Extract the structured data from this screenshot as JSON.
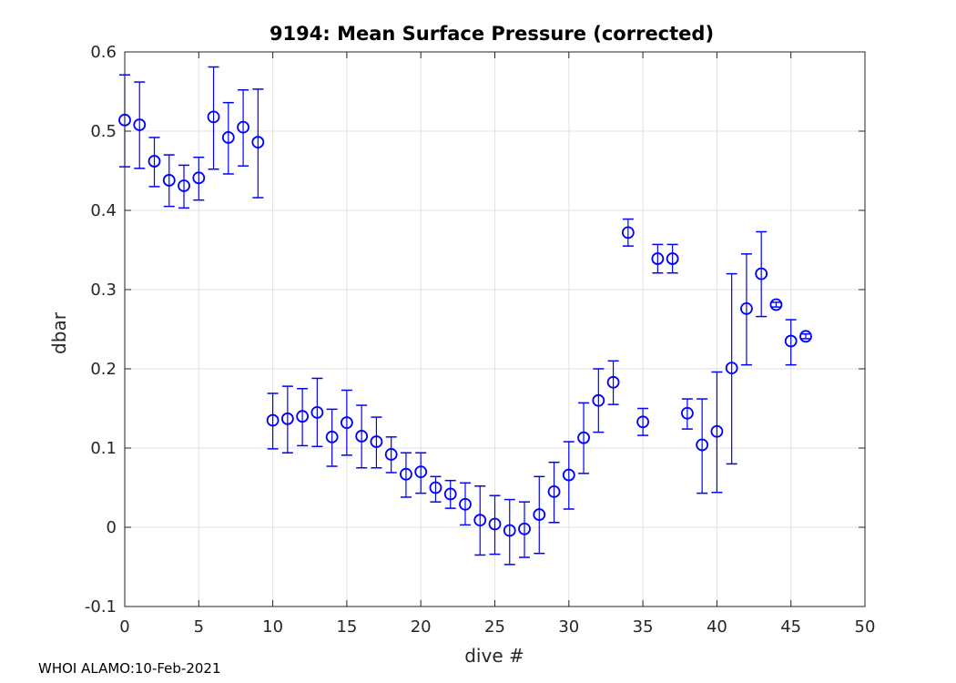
{
  "chart_data": {
    "type": "scatter",
    "title": "9194: Mean Surface Pressure (corrected)",
    "xlabel": "dive #",
    "ylabel": "dbar",
    "xlim": [
      0,
      50
    ],
    "ylim": [
      -0.1,
      0.6
    ],
    "xticks": [
      0,
      5,
      10,
      15,
      20,
      25,
      30,
      35,
      40,
      45,
      50
    ],
    "xtick_labels": [
      "0",
      "5",
      "10",
      "15",
      "20",
      "25",
      "30",
      "35",
      "40",
      "45",
      "50"
    ],
    "yticks": [
      -0.1,
      0,
      0.1,
      0.2,
      0.3,
      0.4,
      0.5,
      0.6
    ],
    "ytick_labels": [
      "-0.1",
      "0",
      "0.1",
      "0.2",
      "0.3",
      "0.4",
      "0.5",
      "0.6"
    ],
    "grid": true,
    "marker": "circle",
    "color": "#0000ff",
    "series": [
      {
        "name": "mean surface pressure",
        "points": [
          {
            "x": 0,
            "y": 0.514,
            "lo": 0.455,
            "hi": 0.571
          },
          {
            "x": 1,
            "y": 0.508,
            "lo": 0.453,
            "hi": 0.562
          },
          {
            "x": 2,
            "y": 0.462,
            "lo": 0.43,
            "hi": 0.492
          },
          {
            "x": 3,
            "y": 0.438,
            "lo": 0.405,
            "hi": 0.47
          },
          {
            "x": 4,
            "y": 0.431,
            "lo": 0.403,
            "hi": 0.457
          },
          {
            "x": 5,
            "y": 0.441,
            "lo": 0.413,
            "hi": 0.467
          },
          {
            "x": 6,
            "y": 0.518,
            "lo": 0.452,
            "hi": 0.581
          },
          {
            "x": 7,
            "y": 0.492,
            "lo": 0.446,
            "hi": 0.536
          },
          {
            "x": 8,
            "y": 0.505,
            "lo": 0.456,
            "hi": 0.552
          },
          {
            "x": 9,
            "y": 0.486,
            "lo": 0.416,
            "hi": 0.553
          },
          {
            "x": 10,
            "y": 0.135,
            "lo": 0.099,
            "hi": 0.169
          },
          {
            "x": 11,
            "y": 0.137,
            "lo": 0.094,
            "hi": 0.178
          },
          {
            "x": 12,
            "y": 0.14,
            "lo": 0.103,
            "hi": 0.175
          },
          {
            "x": 13,
            "y": 0.145,
            "lo": 0.102,
            "hi": 0.188
          },
          {
            "x": 14,
            "y": 0.114,
            "lo": 0.077,
            "hi": 0.149
          },
          {
            "x": 15,
            "y": 0.132,
            "lo": 0.091,
            "hi": 0.173
          },
          {
            "x": 16,
            "y": 0.115,
            "lo": 0.075,
            "hi": 0.154
          },
          {
            "x": 17,
            "y": 0.108,
            "lo": 0.075,
            "hi": 0.139
          },
          {
            "x": 18,
            "y": 0.092,
            "lo": 0.069,
            "hi": 0.114
          },
          {
            "x": 19,
            "y": 0.067,
            "lo": 0.038,
            "hi": 0.094
          },
          {
            "x": 20,
            "y": 0.07,
            "lo": 0.043,
            "hi": 0.094
          },
          {
            "x": 21,
            "y": 0.05,
            "lo": 0.032,
            "hi": 0.064
          },
          {
            "x": 22,
            "y": 0.042,
            "lo": 0.024,
            "hi": 0.059
          },
          {
            "x": 23,
            "y": 0.029,
            "lo": 0.003,
            "hi": 0.056
          },
          {
            "x": 24,
            "y": 0.009,
            "lo": -0.035,
            "hi": 0.052
          },
          {
            "x": 25,
            "y": 0.004,
            "lo": -0.034,
            "hi": 0.04
          },
          {
            "x": 26,
            "y": -0.004,
            "lo": -0.047,
            "hi": 0.035
          },
          {
            "x": 27,
            "y": -0.002,
            "lo": -0.038,
            "hi": 0.032
          },
          {
            "x": 28,
            "y": 0.016,
            "lo": -0.033,
            "hi": 0.064
          },
          {
            "x": 29,
            "y": 0.045,
            "lo": 0.006,
            "hi": 0.082
          },
          {
            "x": 30,
            "y": 0.066,
            "lo": 0.023,
            "hi": 0.108
          },
          {
            "x": 31,
            "y": 0.113,
            "lo": 0.068,
            "hi": 0.157
          },
          {
            "x": 32,
            "y": 0.16,
            "lo": 0.12,
            "hi": 0.2
          },
          {
            "x": 33,
            "y": 0.183,
            "lo": 0.155,
            "hi": 0.21
          },
          {
            "x": 34,
            "y": 0.372,
            "lo": 0.355,
            "hi": 0.389
          },
          {
            "x": 35,
            "y": 0.133,
            "lo": 0.116,
            "hi": 0.15
          },
          {
            "x": 36,
            "y": 0.339,
            "lo": 0.321,
            "hi": 0.357
          },
          {
            "x": 37,
            "y": 0.339,
            "lo": 0.321,
            "hi": 0.357
          },
          {
            "x": 38,
            "y": 0.144,
            "lo": 0.124,
            "hi": 0.162
          },
          {
            "x": 39,
            "y": 0.104,
            "lo": 0.043,
            "hi": 0.162
          },
          {
            "x": 40,
            "y": 0.121,
            "lo": 0.044,
            "hi": 0.196
          },
          {
            "x": 41,
            "y": 0.201,
            "lo": 0.08,
            "hi": 0.32
          },
          {
            "x": 42,
            "y": 0.276,
            "lo": 0.205,
            "hi": 0.345
          },
          {
            "x": 43,
            "y": 0.32,
            "lo": 0.266,
            "hi": 0.373
          },
          {
            "x": 44,
            "y": 0.281,
            "lo": 0.278,
            "hi": 0.284
          },
          {
            "x": 45,
            "y": 0.235,
            "lo": 0.205,
            "hi": 0.262
          },
          {
            "x": 46,
            "y": 0.241,
            "lo": 0.238,
            "hi": 0.244
          }
        ]
      }
    ]
  },
  "footer": {
    "text": "WHOI ALAMO:10-Feb-2021"
  }
}
